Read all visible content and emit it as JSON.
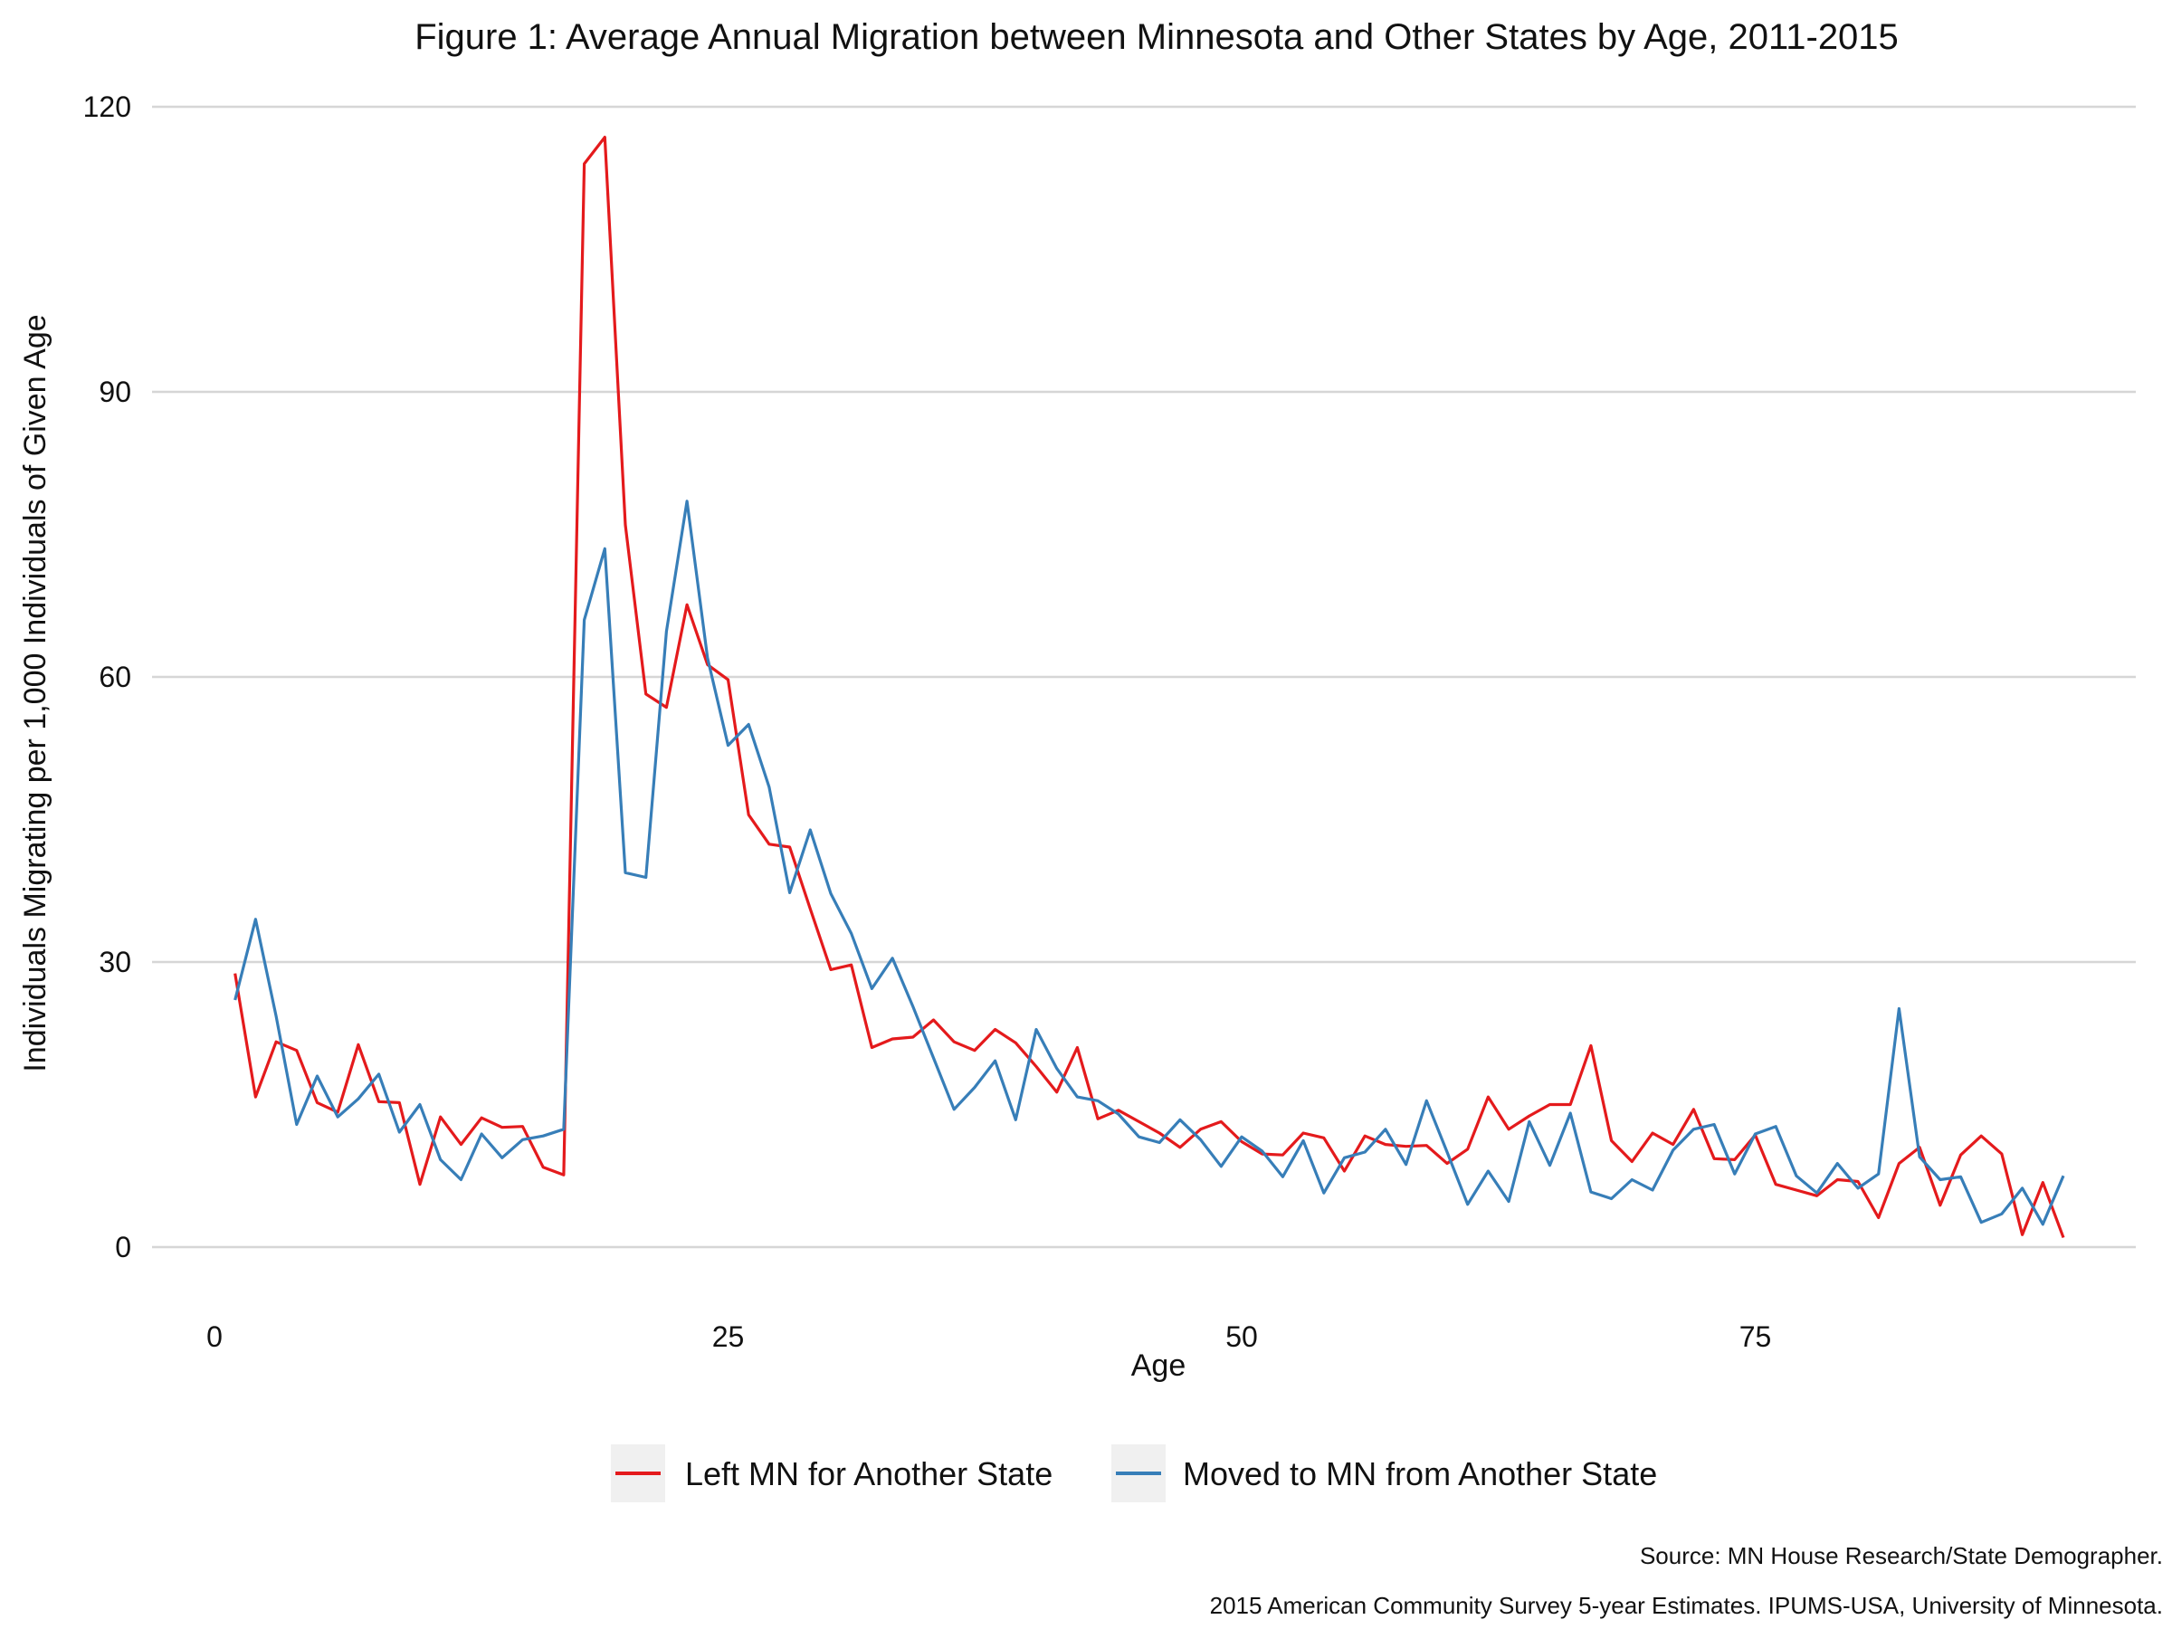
{
  "chart_data": {
    "type": "line",
    "title": "Figure 1: Average Annual Migration between Minnesota and Other States by Age, 2011-2015",
    "xlabel": "Age",
    "ylabel": "Individuals Migrating per 1,000 Individuals of Given Age",
    "xlim": [
      0,
      91
    ],
    "ylim": [
      0,
      120
    ],
    "x_ticks": [
      0,
      25,
      50,
      75
    ],
    "y_ticks": [
      0,
      30,
      60,
      90,
      120
    ],
    "grid": "horizontal",
    "legend_position": "bottom",
    "x": [
      1,
      2,
      3,
      4,
      5,
      6,
      7,
      8,
      9,
      10,
      11,
      12,
      13,
      14,
      15,
      16,
      17,
      18,
      19,
      20,
      21,
      22,
      23,
      24,
      25,
      26,
      27,
      28,
      29,
      30,
      31,
      32,
      33,
      34,
      35,
      36,
      37,
      38,
      39,
      40,
      41,
      42,
      43,
      44,
      45,
      46,
      47,
      48,
      49,
      50,
      51,
      52,
      53,
      54,
      55,
      56,
      57,
      58,
      59,
      60,
      61,
      62,
      63,
      64,
      65,
      66,
      67,
      68,
      69,
      70,
      71,
      72,
      73,
      74,
      75,
      76,
      77,
      78,
      79,
      80,
      81,
      82,
      83,
      84,
      85,
      86,
      87,
      88,
      89,
      90
    ],
    "series": [
      {
        "name": "Left MN for Another State",
        "color": "#e41a1c",
        "values": [
          28.8,
          15.8,
          21.6,
          20.7,
          15.2,
          14.2,
          21.3,
          15.3,
          15.2,
          6.6,
          13.7,
          10.8,
          13.6,
          12.6,
          12.7,
          8.4,
          7.6,
          114.0,
          116.8,
          76.0,
          58.2,
          56.8,
          67.6,
          61.3,
          59.7,
          45.5,
          42.4,
          42.1,
          35.6,
          29.2,
          29.7,
          21.0,
          21.9,
          22.1,
          23.9,
          21.6,
          20.7,
          22.9,
          21.5,
          19.0,
          16.3,
          21.0,
          13.5,
          14.4,
          13.2,
          12.0,
          10.5,
          12.4,
          13.2,
          11.1,
          9.8,
          9.7,
          12.0,
          11.5,
          8.0,
          11.7,
          10.8,
          10.6,
          10.7,
          8.8,
          10.3,
          15.8,
          12.4,
          13.8,
          15.0,
          15.0,
          21.2,
          11.2,
          9.0,
          12.0,
          10.8,
          14.5,
          9.3,
          9.2,
          11.8,
          6.6,
          6.0,
          5.4,
          7.1,
          6.9,
          3.1,
          8.8,
          10.5,
          4.4,
          9.7,
          11.7,
          9.8,
          1.3,
          6.8,
          1.0
        ]
      },
      {
        "name": "Moved to MN from Another State",
        "color": "#377eb8",
        "values": [
          26.0,
          34.5,
          24.3,
          12.9,
          18.0,
          13.7,
          15.6,
          18.2,
          12.1,
          15.0,
          9.2,
          7.1,
          11.9,
          9.4,
          11.3,
          11.7,
          12.4,
          66.0,
          73.5,
          39.4,
          38.9,
          64.8,
          78.5,
          62.0,
          52.8,
          55.0,
          48.4,
          37.3,
          43.9,
          37.2,
          33.0,
          27.2,
          30.4,
          25.3,
          19.9,
          14.5,
          16.8,
          19.6,
          13.4,
          22.9,
          18.8,
          15.8,
          15.4,
          14.0,
          11.6,
          11.0,
          13.4,
          11.3,
          8.5,
          11.6,
          10.1,
          7.4,
          11.2,
          5.7,
          9.4,
          10.0,
          12.4,
          8.7,
          15.4,
          10.0,
          4.5,
          8.0,
          4.8,
          13.2,
          8.6,
          14.1,
          5.8,
          5.1,
          7.1,
          6.0,
          10.2,
          12.4,
          12.9,
          7.7,
          11.9,
          12.7,
          7.5,
          5.7,
          8.8,
          6.2,
          7.7,
          25.1,
          9.5,
          7.1,
          7.4,
          2.6,
          3.5,
          6.2,
          2.4,
          7.5
        ]
      }
    ],
    "source_line1": "Source: MN House Research/State Demographer.",
    "source_line2": "2015 American Community Survey 5-year Estimates. IPUMS-USA, University of Minnesota."
  }
}
